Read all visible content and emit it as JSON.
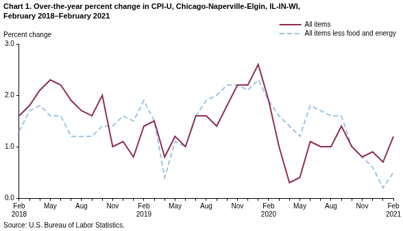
{
  "chart_data": {
    "type": "line",
    "title": "Chart 1. Over-the-year percent change in CPI-U, Chicago-Naperville-Elgin, IL-IN-WI,\nFebruary 2018–February 2021",
    "ylabel": "Percent change",
    "source": "Source: U.S. Bureau of Labor Statistics.",
    "categories": [
      "Feb\n2018",
      null,
      null,
      "May",
      null,
      null,
      "Aug",
      null,
      null,
      "Nov",
      null,
      null,
      "Feb\n2019",
      null,
      null,
      "May",
      null,
      null,
      "Aug",
      null,
      null,
      "Nov",
      null,
      null,
      "Feb\n2020",
      null,
      null,
      "May",
      null,
      null,
      "Aug",
      null,
      null,
      "Nov",
      null,
      null,
      "Feb\n2021"
    ],
    "series": [
      {
        "name": "All items",
        "color": "#8e2c55",
        "line_style": "solid",
        "values": [
          1.6,
          1.8,
          2.1,
          2.3,
          2.2,
          1.9,
          1.7,
          1.6,
          2.0,
          1.0,
          1.1,
          0.8,
          1.4,
          1.5,
          0.8,
          1.2,
          1.0,
          1.6,
          1.6,
          1.4,
          1.8,
          2.2,
          2.2,
          2.6,
          1.9,
          1.0,
          0.3,
          0.4,
          1.1,
          1.0,
          1.0,
          1.4,
          1.0,
          0.8,
          0.9,
          0.7,
          1.2
        ]
      },
      {
        "name": "All items less food and energy",
        "color": "#9dc3e6",
        "line_style": "dashed",
        "values": [
          1.3,
          1.7,
          1.8,
          1.6,
          1.6,
          1.2,
          1.2,
          1.2,
          1.4,
          1.4,
          1.6,
          1.5,
          1.9,
          1.5,
          0.4,
          1.1,
          1.0,
          1.6,
          1.9,
          2.0,
          2.2,
          2.2,
          2.1,
          2.3,
          1.9,
          1.6,
          1.4,
          1.2,
          1.8,
          1.7,
          1.6,
          1.6,
          1.0,
          0.8,
          0.6,
          0.2,
          0.5
        ]
      }
    ],
    "ylim": [
      0,
      3
    ],
    "yticks": [
      {
        "value": 0,
        "label": "0.0"
      },
      {
        "value": 1,
        "label": "1.0"
      },
      {
        "value": 2,
        "label": "2.0"
      },
      {
        "value": 3,
        "label": "3.0"
      }
    ],
    "grid": false,
    "legend": "upper right"
  }
}
